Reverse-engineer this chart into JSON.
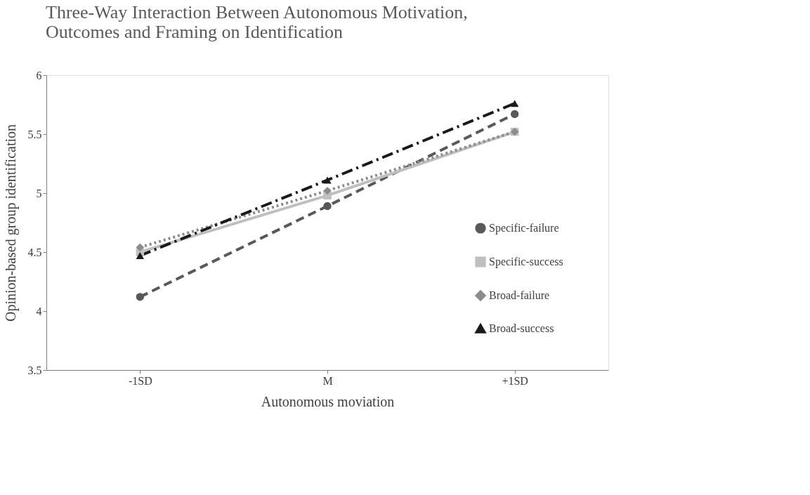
{
  "chart_data": {
    "type": "line",
    "title": [
      "Three-Way Interaction Between Autonomous Motivation,",
      "Outcomes and Framing on Identification"
    ],
    "xlabel": "Autonomous moviation",
    "ylabel": "Opinion-based group identification",
    "categories": [
      "-1SD",
      "M",
      "+1SD"
    ],
    "ylim": [
      3.5,
      6
    ],
    "yticks": [
      3.5,
      4,
      4.5,
      5,
      5.5,
      6
    ],
    "grid": false,
    "legend": "right",
    "series": [
      {
        "name": "Specific-failure",
        "color": "#595959",
        "values": [
          4.12,
          4.89,
          5.67
        ],
        "marker": "circle",
        "line_style": "dashed"
      },
      {
        "name": "Specific-success",
        "color": "#bfbfbf",
        "values": [
          4.5,
          4.98,
          5.52
        ],
        "marker": "square",
        "line_style": "solid"
      },
      {
        "name": "Broad-failure",
        "color": "#8c8c8c",
        "values": [
          4.54,
          5.02,
          5.52
        ],
        "marker": "diamond",
        "line_style": "dotted"
      },
      {
        "name": "Broad-success",
        "color": "#1a1a1a",
        "values": [
          4.47,
          5.11,
          5.76
        ],
        "marker": "triangle",
        "line_style": "dashdot"
      }
    ]
  }
}
